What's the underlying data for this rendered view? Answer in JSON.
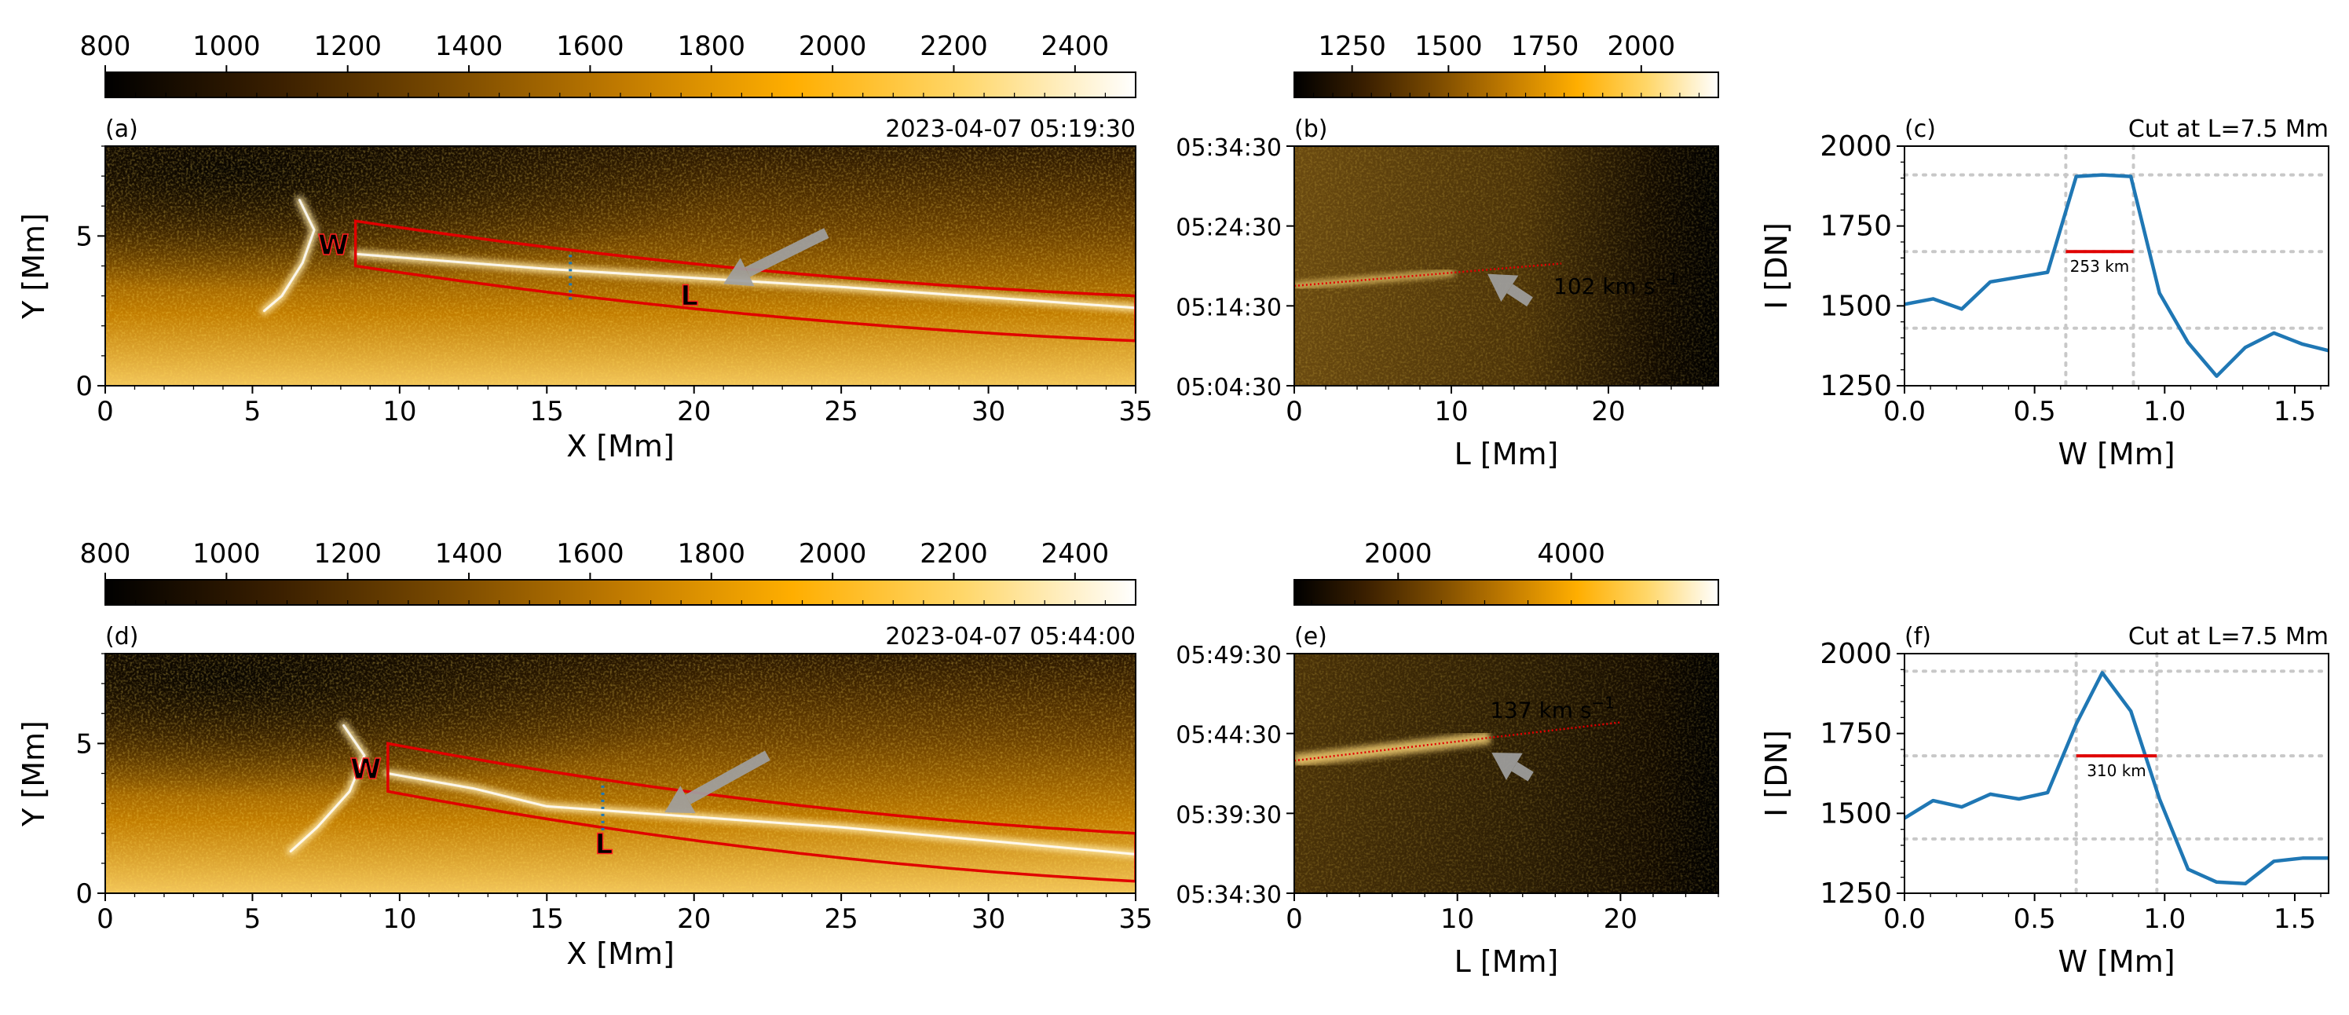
{
  "colors": {
    "cmap": [
      "#000000",
      "#3a1f00",
      "#7a4a00",
      "#c07a00",
      "#ffae00",
      "#ffd76a",
      "#ffffff"
    ],
    "box": "#e00000",
    "line": "#1f77b4",
    "grid": "#c8c8c8",
    "arrow": "#a0a0a0"
  },
  "chart_data": [
    {
      "id": "a",
      "type": "heatmap",
      "label": "(a)",
      "timestamp": "2023-04-07   05:19:30",
      "xlabel": "X [Mm]",
      "ylabel": "Y [Mm]",
      "xlim": [
        0,
        35
      ],
      "ylim": [
        0,
        8
      ],
      "xticks": [
        "0",
        "5",
        "10",
        "15",
        "20",
        "25",
        "30",
        "35"
      ],
      "yticks": [
        "0",
        "5"
      ],
      "colorbar": {
        "range": [
          800,
          2500
        ],
        "ticks": [
          "800",
          "1000",
          "1200",
          "1400",
          "1600",
          "1800",
          "2000",
          "2200",
          "2400"
        ]
      },
      "annotations": {
        "W": "W",
        "L": "L"
      },
      "box": {
        "x_start": 8.5,
        "x_end": 35,
        "top_start": 5.5,
        "top_end": 3.0,
        "bottom_start": 4.0,
        "bottom_end": 1.5
      },
      "cut_x": 15.8,
      "arrow": {
        "from": [
          24.5,
          5.1
        ],
        "to": [
          21.0,
          3.4
        ]
      },
      "bright_loops": [
        [
          [
            6.6,
            6.2
          ],
          [
            7.1,
            5.2
          ],
          [
            6.7,
            4.1
          ],
          [
            6.0,
            3.0
          ],
          [
            5.4,
            2.5
          ]
        ],
        [
          [
            8.5,
            4.4
          ],
          [
            15,
            3.9
          ],
          [
            25,
            3.3
          ],
          [
            35,
            2.6
          ]
        ]
      ]
    },
    {
      "id": "b",
      "type": "heatmap",
      "label": "(b)",
      "xlabel": "L [Mm]",
      "xlim": [
        0,
        27
      ],
      "ylim": [
        0,
        30
      ],
      "xticks": [
        "0",
        "10",
        "20"
      ],
      "yticks": [
        "05:04:30",
        "05:14:30",
        "05:24:30",
        "05:34:30"
      ],
      "colorbar": {
        "range": [
          1100,
          2200
        ],
        "ticks": [
          "1250",
          "1500",
          "1750",
          "2000"
        ]
      },
      "speed_label": "102 km s",
      "speed_exp": "−1",
      "fit_line": {
        "l": [
          0,
          17
        ],
        "t": [
          12.5,
          15.3
        ]
      },
      "arrow": {
        "from": [
          15.0,
          10.5
        ],
        "to": [
          12.3,
          14.0
        ]
      }
    },
    {
      "id": "c",
      "type": "line",
      "label": "(c)",
      "title": "Cut at L=7.5 Mm",
      "xlabel": "W [Mm]",
      "ylabel": "I [DN]",
      "xlim": [
        0,
        1.63
      ],
      "ylim": [
        1250,
        2000
      ],
      "xticks": [
        "0.0",
        "0.5",
        "1.0",
        "1.5"
      ],
      "yticks": [
        "1250",
        "1500",
        "1750",
        "2000"
      ],
      "x": [
        0,
        0.11,
        0.22,
        0.33,
        0.44,
        0.55,
        0.66,
        0.76,
        0.87,
        0.98,
        1.09,
        1.2,
        1.31,
        1.42,
        1.53,
        1.63
      ],
      "y": [
        1505,
        1522,
        1490,
        1575,
        1590,
        1605,
        1905,
        1910,
        1905,
        1540,
        1385,
        1280,
        1370,
        1415,
        1380,
        1360
      ],
      "fwhm": {
        "x0": 0.62,
        "x1": 0.88,
        "y": 1670,
        "label": "253 km"
      },
      "hlines": [
        1910,
        1670,
        1430
      ],
      "vlines": [
        0.62,
        0.88
      ]
    },
    {
      "id": "d",
      "type": "heatmap",
      "label": "(d)",
      "timestamp": "2023-04-07   05:44:00",
      "xlabel": "X [Mm]",
      "ylabel": "Y [Mm]",
      "xlim": [
        0,
        35
      ],
      "ylim": [
        0,
        8
      ],
      "xticks": [
        "0",
        "5",
        "10",
        "15",
        "20",
        "25",
        "30",
        "35"
      ],
      "yticks": [
        "0",
        "5"
      ],
      "colorbar": {
        "range": [
          800,
          2500
        ],
        "ticks": [
          "800",
          "1000",
          "1200",
          "1400",
          "1600",
          "1800",
          "2000",
          "2200",
          "2400"
        ]
      },
      "annotations": {
        "W": "W",
        "L": "L"
      },
      "box": {
        "x_start": 9.6,
        "x_end": 35,
        "top_start": 5.0,
        "top_end": 2.0,
        "bottom_start": 3.4,
        "bottom_end": 0.4
      },
      "cut_x": 16.9,
      "arrow": {
        "from": [
          22.5,
          4.6
        ],
        "to": [
          19.0,
          2.7
        ]
      },
      "bright_loops": [
        [
          [
            8.1,
            5.6
          ],
          [
            8.8,
            4.6
          ],
          [
            8.3,
            3.4
          ],
          [
            7.2,
            2.2
          ],
          [
            6.3,
            1.4
          ]
        ],
        [
          [
            9.6,
            4.0
          ],
          [
            12.5,
            3.5
          ],
          [
            15,
            2.9
          ],
          [
            25,
            2.2
          ],
          [
            35,
            1.3
          ]
        ]
      ]
    },
    {
      "id": "e",
      "type": "heatmap",
      "label": "(e)",
      "xlabel": "L [Mm]",
      "xlim": [
        0,
        26
      ],
      "ylim": [
        0,
        15
      ],
      "xticks": [
        "0",
        "10",
        "20"
      ],
      "yticks": [
        "05:34:30",
        "05:39:30",
        "05:44:30",
        "05:49:30"
      ],
      "colorbar": {
        "range": [
          800,
          5700
        ],
        "ticks": [
          "2000",
          "4000"
        ]
      },
      "speed_label": "137 km s",
      "speed_exp": "−1",
      "fit_line": {
        "l": [
          0,
          20
        ],
        "t": [
          8.3,
          10.7
        ]
      },
      "arrow": {
        "from": [
          14.5,
          7.3
        ],
        "to": [
          12.1,
          8.8
        ]
      }
    },
    {
      "id": "f",
      "type": "line",
      "label": "(f)",
      "title": "Cut at L=7.5 Mm",
      "xlabel": "W [Mm]",
      "ylabel": "I [DN]",
      "xlim": [
        0,
        1.63
      ],
      "ylim": [
        1250,
        2000
      ],
      "xticks": [
        "0.0",
        "0.5",
        "1.0",
        "1.5"
      ],
      "yticks": [
        "1250",
        "1500",
        "1750",
        "2000"
      ],
      "x": [
        0,
        0.11,
        0.22,
        0.33,
        0.44,
        0.55,
        0.66,
        0.76,
        0.87,
        0.98,
        1.09,
        1.2,
        1.31,
        1.42,
        1.53,
        1.63
      ],
      "y": [
        1485,
        1540,
        1520,
        1560,
        1545,
        1565,
        1780,
        1940,
        1820,
        1545,
        1325,
        1285,
        1280,
        1350,
        1360,
        1360
      ],
      "fwhm": {
        "x0": 0.66,
        "x1": 0.97,
        "y": 1680,
        "label": "310 km"
      },
      "hlines": [
        1945,
        1680,
        1420
      ],
      "vlines": [
        0.66,
        0.97
      ]
    }
  ]
}
